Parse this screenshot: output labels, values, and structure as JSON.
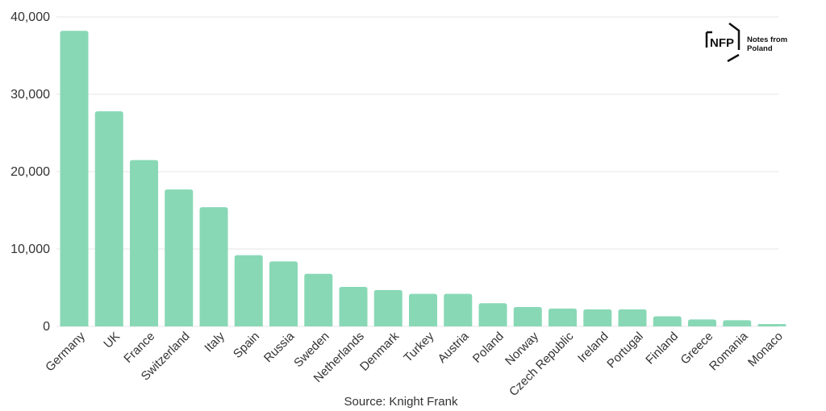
{
  "chart_data": {
    "type": "bar",
    "categories": [
      "Germany",
      "UK",
      "France",
      "Switzerland",
      "Italy",
      "Spain",
      "Russia",
      "Sweden",
      "Netherlands",
      "Denmark",
      "Turkey",
      "Austria",
      "Poland",
      "Norway",
      "Czech Republic",
      "Ireland",
      "Portugal",
      "Finland",
      "Greece",
      "Romania",
      "Monaco"
    ],
    "values": [
      38200,
      27800,
      21500,
      17700,
      15400,
      9200,
      8400,
      6800,
      5100,
      4700,
      4200,
      4200,
      3000,
      2500,
      2300,
      2200,
      2200,
      1300,
      900,
      800,
      300
    ],
    "title": "",
    "xlabel": "",
    "ylabel": "",
    "ylim": [
      0,
      40000
    ],
    "yticks": [
      0,
      10000,
      20000,
      30000,
      40000
    ],
    "ytick_labels": [
      "0",
      "10,000",
      "20,000",
      "30,000",
      "40,000"
    ],
    "grid": true,
    "bar_color": "#88d8b6",
    "grid_color": "#e6e6e6"
  },
  "source": "Source: Knight Frank",
  "logo": {
    "mark": "NFP",
    "line1": "Notes from",
    "line2": "Poland"
  }
}
